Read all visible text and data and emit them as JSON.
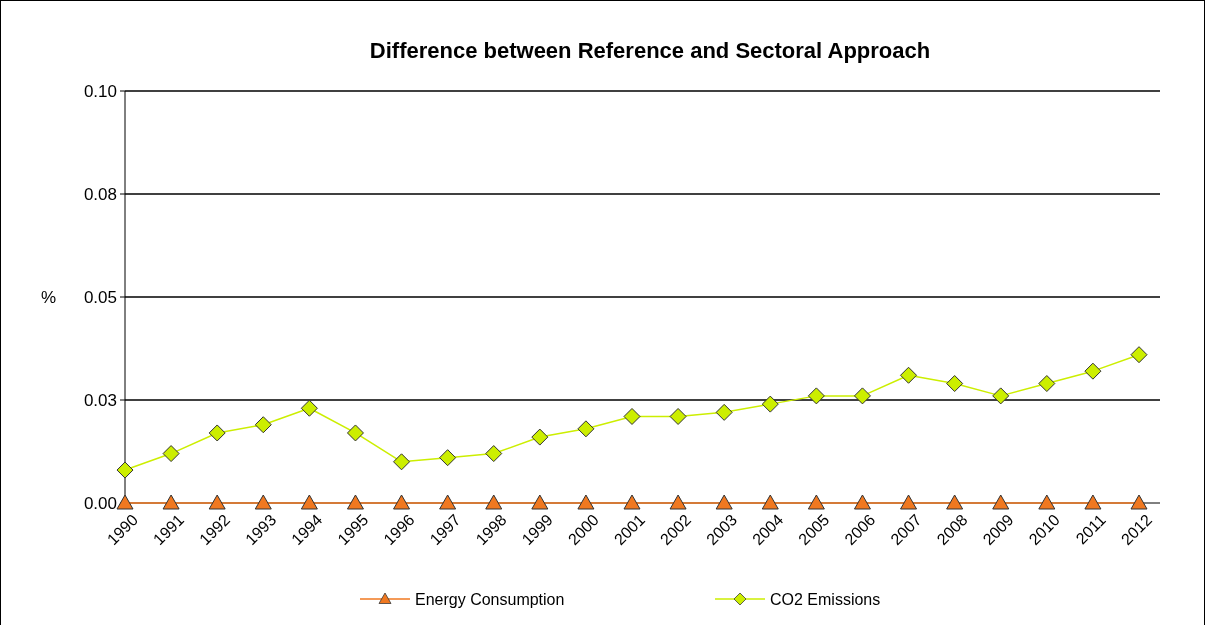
{
  "chart_data": {
    "type": "line",
    "title": "Difference between Reference and Sectoral Approach",
    "ylabel": "%",
    "categories": [
      "1990",
      "1991",
      "1992",
      "1993",
      "1994",
      "1995",
      "1996",
      "1997",
      "1998",
      "1999",
      "2000",
      "2001",
      "2002",
      "2003",
      "2004",
      "2005",
      "2006",
      "2007",
      "2008",
      "2009",
      "2010",
      "2011",
      "2012"
    ],
    "series": [
      {
        "name": "Energy Consumption",
        "color": "#f07820",
        "marker": "triangle",
        "values": [
          0,
          0,
          0,
          0,
          0,
          0,
          0,
          0,
          0,
          0,
          0,
          0,
          0,
          0,
          0,
          0,
          0,
          0,
          0,
          0,
          0,
          0,
          0
        ]
      },
      {
        "name": "CO2 Emissions",
        "color": "#ccee00",
        "marker": "diamond",
        "values": [
          0.008,
          0.012,
          0.017,
          0.019,
          0.023,
          0.017,
          0.01,
          0.011,
          0.012,
          0.016,
          0.018,
          0.021,
          0.021,
          0.022,
          0.024,
          0.026,
          0.026,
          0.031,
          0.029,
          0.026,
          0.029,
          0.032,
          0.036
        ]
      }
    ],
    "ylim": [
      0,
      0.1
    ],
    "yticks": [
      {
        "value": 0,
        "label": "0.00"
      },
      {
        "value": 0.025,
        "label": "0.03"
      },
      {
        "value": 0.05,
        "label": "0.05"
      },
      {
        "value": 0.075,
        "label": "0.08"
      },
      {
        "value": 0.1,
        "label": "0.10"
      }
    ],
    "grid": "y",
    "legend": "bottom"
  }
}
